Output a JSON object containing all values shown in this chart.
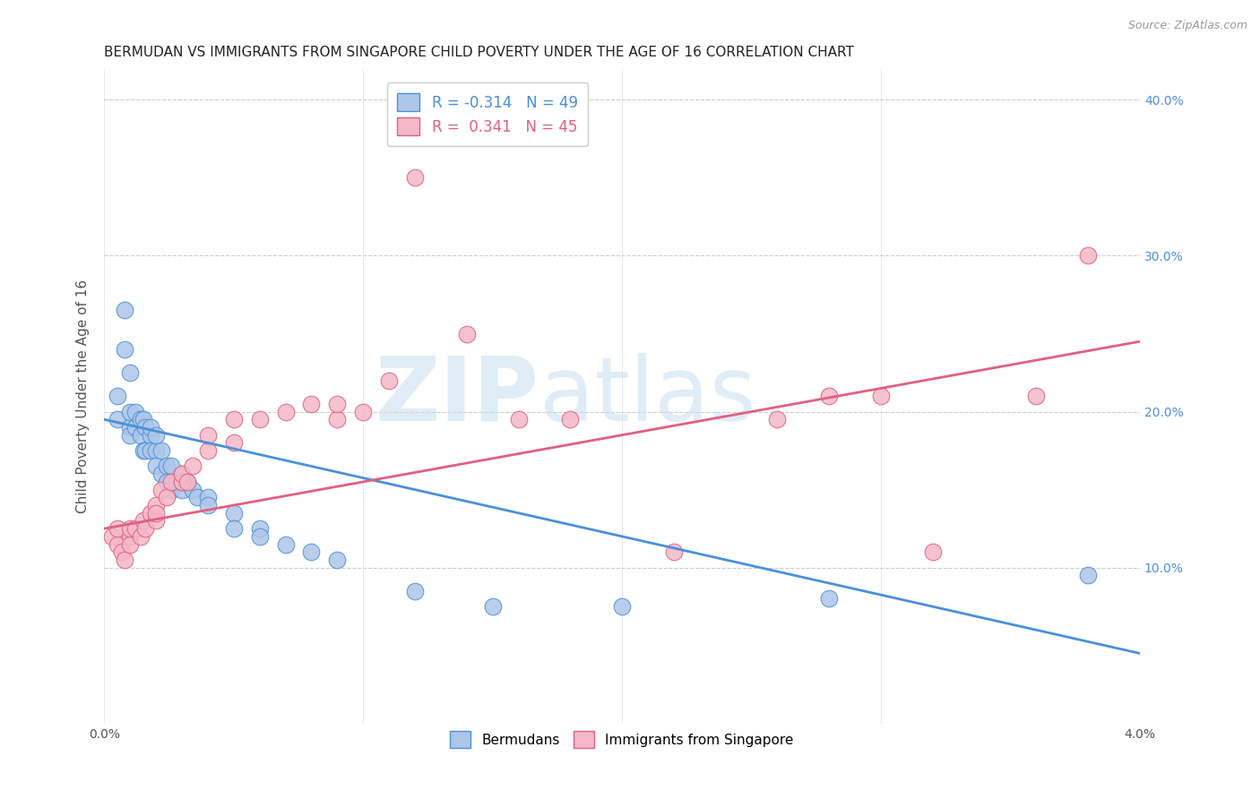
{
  "title": "BERMUDAN VS IMMIGRANTS FROM SINGAPORE CHILD POVERTY UNDER THE AGE OF 16 CORRELATION CHART",
  "source": "Source: ZipAtlas.com",
  "ylabel": "Child Poverty Under the Age of 16",
  "xlim": [
    0.0,
    0.04
  ],
  "ylim": [
    0.0,
    0.42
  ],
  "legend_blue_label": "R = -0.314   N = 49",
  "legend_pink_label": "R =  0.341   N = 45",
  "legend_bottom_blue": "Bermudans",
  "legend_bottom_pink": "Immigrants from Singapore",
  "blue_color": "#aec6e8",
  "pink_color": "#f4b8c8",
  "blue_line_color": "#4a90d9",
  "pink_line_color": "#e06080",
  "watermark_zip": "ZIP",
  "watermark_atlas": "atlas",
  "blue_x": [
    0.0005,
    0.0005,
    0.0008,
    0.0008,
    0.001,
    0.001,
    0.001,
    0.001,
    0.0012,
    0.0012,
    0.0014,
    0.0014,
    0.0015,
    0.0015,
    0.0016,
    0.0016,
    0.0018,
    0.0018,
    0.0018,
    0.002,
    0.002,
    0.002,
    0.0022,
    0.0022,
    0.0024,
    0.0024,
    0.0026,
    0.0026,
    0.0028,
    0.003,
    0.003,
    0.003,
    0.0032,
    0.0034,
    0.0036,
    0.004,
    0.004,
    0.005,
    0.005,
    0.006,
    0.006,
    0.007,
    0.008,
    0.009,
    0.012,
    0.015,
    0.02,
    0.028,
    0.038
  ],
  "blue_y": [
    0.195,
    0.21,
    0.24,
    0.265,
    0.19,
    0.2,
    0.225,
    0.185,
    0.19,
    0.2,
    0.195,
    0.185,
    0.195,
    0.175,
    0.19,
    0.175,
    0.185,
    0.19,
    0.175,
    0.175,
    0.185,
    0.165,
    0.175,
    0.16,
    0.165,
    0.155,
    0.165,
    0.15,
    0.155,
    0.16,
    0.15,
    0.155,
    0.155,
    0.15,
    0.145,
    0.145,
    0.14,
    0.135,
    0.125,
    0.125,
    0.12,
    0.115,
    0.11,
    0.105,
    0.085,
    0.075,
    0.075,
    0.08,
    0.095
  ],
  "pink_x": [
    0.0003,
    0.0005,
    0.0005,
    0.0007,
    0.0008,
    0.001,
    0.001,
    0.001,
    0.0012,
    0.0014,
    0.0015,
    0.0016,
    0.0018,
    0.002,
    0.002,
    0.002,
    0.0022,
    0.0024,
    0.0026,
    0.003,
    0.003,
    0.0032,
    0.0034,
    0.004,
    0.004,
    0.005,
    0.005,
    0.006,
    0.007,
    0.008,
    0.009,
    0.009,
    0.01,
    0.011,
    0.012,
    0.014,
    0.016,
    0.018,
    0.022,
    0.026,
    0.028,
    0.03,
    0.032,
    0.036,
    0.038
  ],
  "pink_y": [
    0.12,
    0.115,
    0.125,
    0.11,
    0.105,
    0.12,
    0.115,
    0.125,
    0.125,
    0.12,
    0.13,
    0.125,
    0.135,
    0.13,
    0.14,
    0.135,
    0.15,
    0.145,
    0.155,
    0.155,
    0.16,
    0.155,
    0.165,
    0.175,
    0.185,
    0.18,
    0.195,
    0.195,
    0.2,
    0.205,
    0.195,
    0.205,
    0.2,
    0.22,
    0.35,
    0.25,
    0.195,
    0.195,
    0.11,
    0.195,
    0.21,
    0.21,
    0.11,
    0.21,
    0.3
  ],
  "blue_trend_x": [
    0.0,
    0.04
  ],
  "blue_trend_y": [
    0.195,
    0.045
  ],
  "pink_trend_x": [
    0.0,
    0.04
  ],
  "pink_trend_y": [
    0.125,
    0.245
  ],
  "background_color": "#ffffff",
  "grid_color": "#cccccc",
  "title_fontsize": 11,
  "axis_label_fontsize": 11,
  "tick_fontsize": 10,
  "source_fontsize": 9
}
